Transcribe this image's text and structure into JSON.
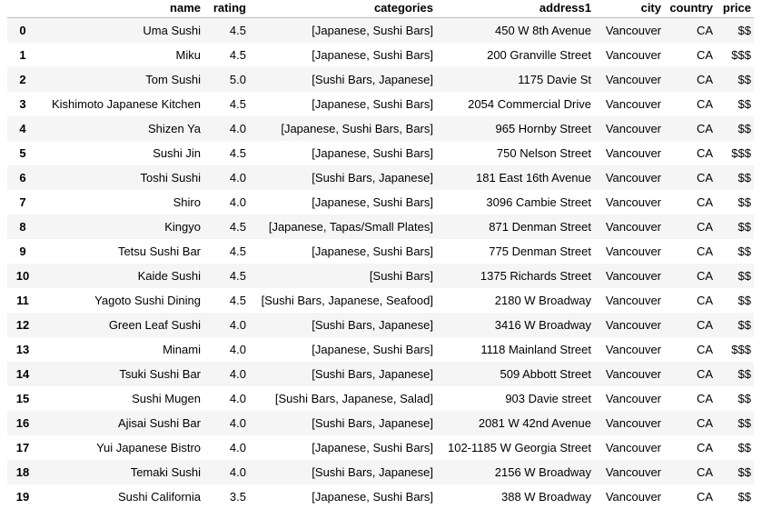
{
  "table": {
    "columns": [
      {
        "key": "index",
        "label": ""
      },
      {
        "key": "name",
        "label": "name"
      },
      {
        "key": "rating",
        "label": "rating"
      },
      {
        "key": "categories",
        "label": "categories"
      },
      {
        "key": "address1",
        "label": "address1"
      },
      {
        "key": "city",
        "label": "city"
      },
      {
        "key": "country",
        "label": "country"
      },
      {
        "key": "price",
        "label": "price"
      }
    ],
    "rows": [
      {
        "index": "0",
        "name": "Uma Sushi",
        "rating": "4.5",
        "categories": "[Japanese, Sushi Bars]",
        "address1": "450 W 8th Avenue",
        "city": "Vancouver",
        "country": "CA",
        "price": "$$"
      },
      {
        "index": "1",
        "name": "Miku",
        "rating": "4.5",
        "categories": "[Japanese, Sushi Bars]",
        "address1": "200 Granville Street",
        "city": "Vancouver",
        "country": "CA",
        "price": "$$$"
      },
      {
        "index": "2",
        "name": "Tom Sushi",
        "rating": "5.0",
        "categories": "[Sushi Bars, Japanese]",
        "address1": "1175 Davie St",
        "city": "Vancouver",
        "country": "CA",
        "price": "$$"
      },
      {
        "index": "3",
        "name": "Kishimoto Japanese Kitchen",
        "rating": "4.5",
        "categories": "[Japanese, Sushi Bars]",
        "address1": "2054 Commercial Drive",
        "city": "Vancouver",
        "country": "CA",
        "price": "$$"
      },
      {
        "index": "4",
        "name": "Shizen Ya",
        "rating": "4.0",
        "categories": "[Japanese, Sushi Bars, Bars]",
        "address1": "965 Hornby Street",
        "city": "Vancouver",
        "country": "CA",
        "price": "$$"
      },
      {
        "index": "5",
        "name": "Sushi Jin",
        "rating": "4.5",
        "categories": "[Japanese, Sushi Bars]",
        "address1": "750 Nelson Street",
        "city": "Vancouver",
        "country": "CA",
        "price": "$$$"
      },
      {
        "index": "6",
        "name": "Toshi Sushi",
        "rating": "4.0",
        "categories": "[Sushi Bars, Japanese]",
        "address1": "181 East 16th Avenue",
        "city": "Vancouver",
        "country": "CA",
        "price": "$$"
      },
      {
        "index": "7",
        "name": "Shiro",
        "rating": "4.0",
        "categories": "[Japanese, Sushi Bars]",
        "address1": "3096 Cambie Street",
        "city": "Vancouver",
        "country": "CA",
        "price": "$$"
      },
      {
        "index": "8",
        "name": "Kingyo",
        "rating": "4.5",
        "categories": "[Japanese, Tapas/Small Plates]",
        "address1": "871 Denman Street",
        "city": "Vancouver",
        "country": "CA",
        "price": "$$"
      },
      {
        "index": "9",
        "name": "Tetsu Sushi Bar",
        "rating": "4.5",
        "categories": "[Japanese, Sushi Bars]",
        "address1": "775 Denman Street",
        "city": "Vancouver",
        "country": "CA",
        "price": "$$"
      },
      {
        "index": "10",
        "name": "Kaide Sushi",
        "rating": "4.5",
        "categories": "[Sushi Bars]",
        "address1": "1375 Richards Street",
        "city": "Vancouver",
        "country": "CA",
        "price": "$$"
      },
      {
        "index": "11",
        "name": "Yagoto Sushi Dining",
        "rating": "4.5",
        "categories": "[Sushi Bars, Japanese, Seafood]",
        "address1": "2180 W Broadway",
        "city": "Vancouver",
        "country": "CA",
        "price": "$$"
      },
      {
        "index": "12",
        "name": "Green Leaf Sushi",
        "rating": "4.0",
        "categories": "[Sushi Bars, Japanese]",
        "address1": "3416 W Broadway",
        "city": "Vancouver",
        "country": "CA",
        "price": "$$"
      },
      {
        "index": "13",
        "name": "Minami",
        "rating": "4.0",
        "categories": "[Japanese, Sushi Bars]",
        "address1": "1118 Mainland Street",
        "city": "Vancouver",
        "country": "CA",
        "price": "$$$"
      },
      {
        "index": "14",
        "name": "Tsuki Sushi Bar",
        "rating": "4.0",
        "categories": "[Sushi Bars, Japanese]",
        "address1": "509 Abbott Street",
        "city": "Vancouver",
        "country": "CA",
        "price": "$$"
      },
      {
        "index": "15",
        "name": "Sushi Mugen",
        "rating": "4.0",
        "categories": "[Sushi Bars, Japanese, Salad]",
        "address1": "903 Davie street",
        "city": "Vancouver",
        "country": "CA",
        "price": "$$"
      },
      {
        "index": "16",
        "name": "Ajisai Sushi Bar",
        "rating": "4.0",
        "categories": "[Sushi Bars, Japanese]",
        "address1": "2081 W 42nd Avenue",
        "city": "Vancouver",
        "country": "CA",
        "price": "$$"
      },
      {
        "index": "17",
        "name": "Yui Japanese Bistro",
        "rating": "4.0",
        "categories": "[Japanese, Sushi Bars]",
        "address1": "102-1185 W Georgia Street",
        "city": "Vancouver",
        "country": "CA",
        "price": "$$"
      },
      {
        "index": "18",
        "name": "Temaki Sushi",
        "rating": "4.0",
        "categories": "[Sushi Bars, Japanese]",
        "address1": "2156 W Broadway",
        "city": "Vancouver",
        "country": "CA",
        "price": "$$"
      },
      {
        "index": "19",
        "name": "Sushi California",
        "rating": "3.5",
        "categories": "[Japanese, Sushi Bars]",
        "address1": "388 W Broadway",
        "city": "Vancouver",
        "country": "CA",
        "price": "$$"
      }
    ]
  }
}
